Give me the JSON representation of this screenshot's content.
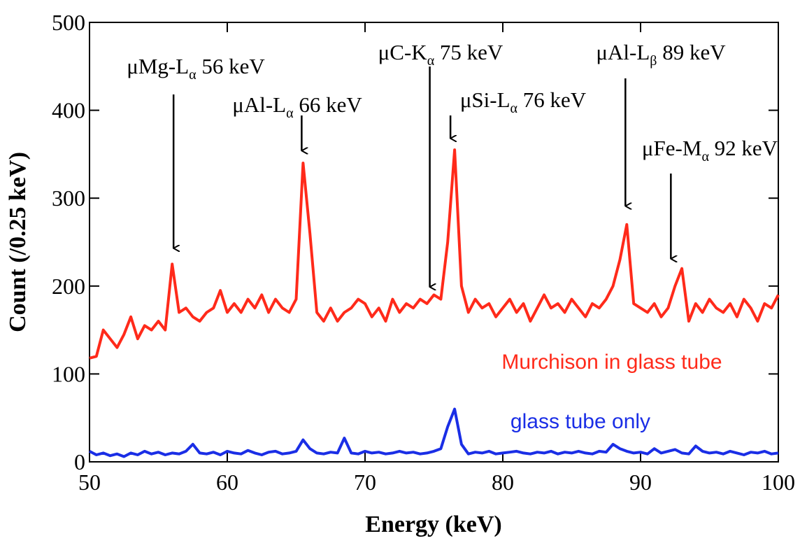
{
  "chart_data": {
    "type": "line",
    "xlabel": "Energy (keV)",
    "ylabel": "Count (/0.25 keV)",
    "xlim": [
      50,
      100
    ],
    "xticks": [
      50,
      60,
      70,
      80,
      90,
      100
    ],
    "ylim": [
      0,
      500
    ],
    "yticks": [
      0,
      100,
      200,
      300,
      400,
      500
    ],
    "x": [
      50,
      50.5,
      51,
      51.5,
      52,
      52.5,
      53,
      53.5,
      54,
      54.5,
      55,
      55.5,
      56,
      56.5,
      57,
      57.5,
      58,
      58.5,
      59,
      59.5,
      60,
      60.5,
      61,
      61.5,
      62,
      62.5,
      63,
      63.5,
      64,
      64.5,
      65,
      65.5,
      66,
      66.5,
      67,
      67.5,
      68,
      68.5,
      69,
      69.5,
      70,
      70.5,
      71,
      71.5,
      72,
      72.5,
      73,
      73.5,
      74,
      74.5,
      75,
      75.5,
      76,
      76.5,
      77,
      77.5,
      78,
      78.5,
      79,
      79.5,
      80,
      80.5,
      81,
      81.5,
      82,
      82.5,
      83,
      83.5,
      84,
      84.5,
      85,
      85.5,
      86,
      86.5,
      87,
      87.5,
      88,
      88.5,
      89,
      89.5,
      90,
      90.5,
      91,
      91.5,
      92,
      92.5,
      93,
      93.5,
      94,
      94.5,
      95,
      95.5,
      96,
      96.5,
      97,
      97.5,
      98,
      98.5,
      99,
      99.5,
      100
    ],
    "series": [
      {
        "name": "Murchison in glass tube",
        "color": "#ff2a1a",
        "values": [
          118,
          120,
          150,
          140,
          130,
          145,
          165,
          140,
          155,
          150,
          160,
          150,
          225,
          170,
          175,
          165,
          160,
          170,
          175,
          195,
          170,
          180,
          170,
          185,
          175,
          190,
          170,
          185,
          175,
          170,
          185,
          340,
          260,
          170,
          160,
          175,
          160,
          170,
          175,
          185,
          180,
          165,
          175,
          160,
          185,
          170,
          180,
          175,
          185,
          180,
          190,
          185,
          250,
          355,
          200,
          170,
          185,
          175,
          180,
          165,
          175,
          185,
          170,
          180,
          160,
          175,
          190,
          175,
          180,
          170,
          185,
          175,
          165,
          180,
          175,
          185,
          200,
          230,
          270,
          180,
          175,
          170,
          180,
          165,
          175,
          200,
          220,
          160,
          180,
          170,
          185,
          175,
          170,
          180,
          165,
          185,
          175,
          160,
          180,
          175,
          190
        ]
      },
      {
        "name": "glass tube only",
        "color": "#1a2ee6",
        "values": [
          12,
          8,
          10,
          7,
          9,
          6,
          10,
          8,
          12,
          9,
          11,
          8,
          10,
          9,
          12,
          20,
          10,
          9,
          11,
          8,
          12,
          10,
          9,
          13,
          10,
          8,
          11,
          12,
          9,
          10,
          12,
          25,
          15,
          10,
          9,
          11,
          10,
          27,
          10,
          9,
          12,
          10,
          11,
          9,
          10,
          12,
          10,
          11,
          9,
          10,
          12,
          15,
          40,
          60,
          20,
          9,
          11,
          10,
          12,
          9,
          10,
          11,
          12,
          10,
          9,
          11,
          10,
          12,
          9,
          11,
          10,
          12,
          10,
          9,
          12,
          11,
          20,
          15,
          12,
          10,
          11,
          9,
          15,
          10,
          12,
          14,
          10,
          9,
          18,
          12,
          10,
          11,
          9,
          12,
          10,
          8,
          11,
          10,
          12,
          9,
          10
        ]
      }
    ],
    "annotations": [
      {
        "prefix": "μMg-L",
        "sub": "α",
        "suffix": " 56 keV",
        "x": 56.1,
        "y": 243
      },
      {
        "prefix": "μAl-L",
        "sub": "α",
        "suffix": " 66 keV",
        "x": 65.4,
        "y": 354
      },
      {
        "prefix": "μC-K",
        "sub": "α",
        "suffix": " 75 keV",
        "x": 74.7,
        "y": 199
      },
      {
        "prefix": "μSi-L",
        "sub": "α",
        "suffix": " 76 keV",
        "x": 76.2,
        "y": 368
      },
      {
        "prefix": "μAl-L",
        "sub": "β",
        "suffix": " 89 keV",
        "x": 88.9,
        "y": 291
      },
      {
        "prefix": "μFe-M",
        "sub": "α",
        "suffix": " 92 keV",
        "x": 92.2,
        "y": 231
      }
    ]
  }
}
